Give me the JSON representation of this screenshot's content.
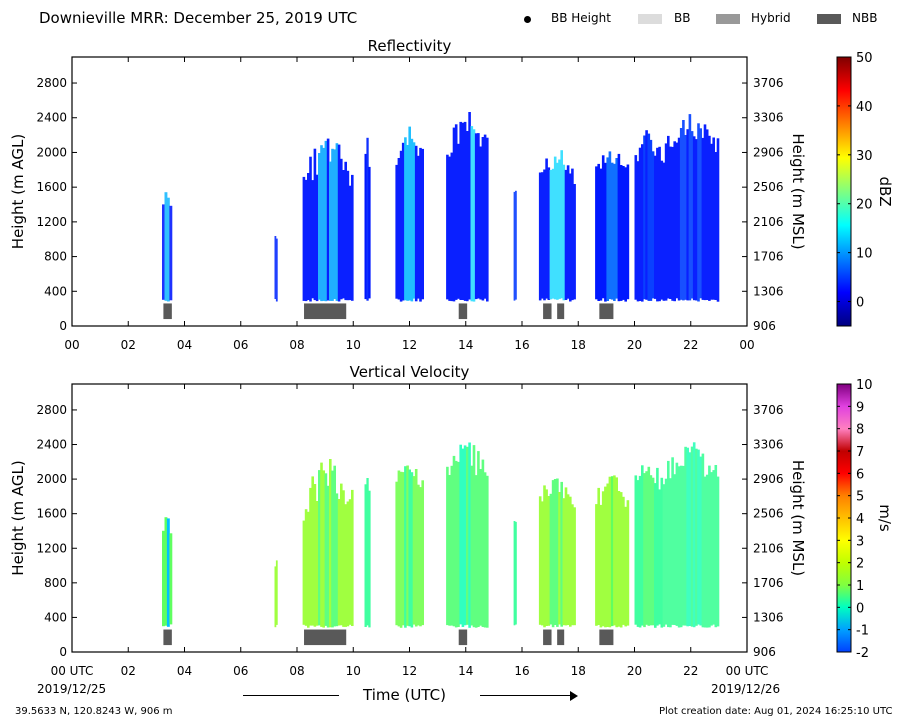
{
  "header": {
    "title": "Downieville MRR:  December 25, 2019 UTC",
    "legend": [
      {
        "label": "BB Height",
        "kind": "dot",
        "color": "#000000"
      },
      {
        "label": "BB",
        "kind": "box",
        "color": "#dcdcdc"
      },
      {
        "label": "Hybrid",
        "kind": "box",
        "color": "#999999"
      },
      {
        "label": "NBB",
        "kind": "box",
        "color": "#595959"
      }
    ]
  },
  "x_axis": {
    "label": "Time (UTC)",
    "start_label": "00 UTC",
    "end_label": "00 UTC",
    "start_date": "2019/12/25",
    "end_date": "2019/12/26"
  },
  "footer": {
    "location": "39.5633 N, 120.8243 W, 906 m",
    "creation": "Plot creation date: Aug 01, 2024 16:25:10 UTC"
  },
  "chart_data": [
    {
      "type": "heatmap",
      "title": "Reflectivity",
      "ylabel": "Height (m AGL)",
      "ylabel_right": "Height (m MSL)",
      "colorbar_label": "dBZ",
      "colorbar_ticks": [
        "50",
        "40",
        "30",
        "20",
        "10",
        "0"
      ],
      "colorbar_range": [
        -5,
        50
      ],
      "colorbar_colors": [
        "#00007f",
        "#0000ff",
        "#0080ff",
        "#00ffff",
        "#80ff80",
        "#ffff00",
        "#ff8000",
        "#ff0000",
        "#7f0000"
      ],
      "xlim": [
        0,
        24
      ],
      "ylim": [
        0,
        3100
      ],
      "xticks": [
        "00",
        "02",
        "04",
        "06",
        "08",
        "10",
        "12",
        "14",
        "16",
        "18",
        "20",
        "22",
        "00"
      ],
      "yticks": [
        "0",
        "400",
        "800",
        "1200",
        "1600",
        "2000",
        "2400",
        "2800"
      ],
      "yticks_right": [
        "906",
        "1306",
        "1706",
        "2106",
        "2506",
        "2906",
        "3306",
        "3706"
      ],
      "echo_blocks": [
        {
          "t0": 3.2,
          "t1": 3.55,
          "top": 1600,
          "top_jag": 200,
          "fill": "#1e32ff",
          "core": "#30c0ff"
        },
        {
          "t0": 7.2,
          "t1": 7.3,
          "top": 1100,
          "top_jag": 100,
          "fill": "#2040ff",
          "core": "#2040ff"
        },
        {
          "t0": 8.2,
          "t1": 10.0,
          "top": 2300,
          "top_jag": 500,
          "fill": "#0a20ff",
          "core": "#20b0ff"
        },
        {
          "t0": 10.4,
          "t1": 10.6,
          "top": 2200,
          "top_jag": 300,
          "fill": "#0018ff",
          "core": "#1030ff"
        },
        {
          "t0": 11.5,
          "t1": 12.5,
          "top": 2300,
          "top_jag": 300,
          "fill": "#0a20ff",
          "core": "#20c0ff"
        },
        {
          "t0": 13.3,
          "t1": 14.8,
          "top": 2500,
          "top_jag": 400,
          "fill": "#0a20ff",
          "core": "#40e0ff"
        },
        {
          "t0": 15.7,
          "t1": 15.8,
          "top": 1600,
          "top_jag": 100,
          "fill": "#2050ff",
          "core": "#2050ff"
        },
        {
          "t0": 16.6,
          "t1": 17.9,
          "top": 2100,
          "top_jag": 300,
          "fill": "#0a20ff",
          "core": "#40e0ff"
        },
        {
          "t0": 18.6,
          "t1": 19.8,
          "top": 2100,
          "top_jag": 300,
          "fill": "#0018ff",
          "core": "#1070ff"
        },
        {
          "t0": 20.0,
          "t1": 21.0,
          "top": 2300,
          "top_jag": 300,
          "fill": "#0a20ff",
          "core": "#0a40ff"
        },
        {
          "t0": 21.0,
          "t1": 23.0,
          "top": 2500,
          "top_jag": 400,
          "fill": "#0a20ff",
          "core": "#1850ff"
        }
      ],
      "nbb_segments": [
        [
          3.25,
          3.55
        ],
        [
          8.25,
          9.75
        ],
        [
          13.75,
          14.05
        ],
        [
          16.75,
          17.05
        ],
        [
          17.25,
          17.5
        ],
        [
          18.75,
          19.25
        ]
      ],
      "nbb_height_range": [
        80,
        260
      ]
    },
    {
      "type": "heatmap",
      "title": "Vertical Velocity",
      "ylabel": "Height (m AGL)",
      "ylabel_right": "Height (m MSL)",
      "colorbar_label": "m/s",
      "colorbar_ticks": [
        "10",
        "9",
        "8",
        "7",
        "6",
        "5",
        "4",
        "3",
        "2",
        "1",
        "0",
        "-1",
        "-2"
      ],
      "colorbar_range": [
        -2,
        10
      ],
      "colorbar_colors": [
        "#0040ff",
        "#00a0ff",
        "#00ffc0",
        "#80ff40",
        "#c0ff00",
        "#ffff00",
        "#ffc000",
        "#ff8000",
        "#ff0000",
        "#c00000",
        "#ff80c0",
        "#e040e0",
        "#800080"
      ],
      "xlim": [
        0,
        24
      ],
      "ylim": [
        0,
        3100
      ],
      "xticks": [
        "00 UTC",
        "02",
        "04",
        "06",
        "08",
        "10",
        "12",
        "14",
        "16",
        "18",
        "20",
        "22",
        "00 UTC"
      ],
      "yticks": [
        "0",
        "400",
        "800",
        "1200",
        "1600",
        "2000",
        "2400",
        "2800"
      ],
      "yticks_right": [
        "906",
        "1306",
        "1706",
        "2106",
        "2506",
        "2906",
        "3306",
        "3706"
      ],
      "echo_blocks": [
        {
          "t0": 3.2,
          "t1": 3.55,
          "top": 1600,
          "top_jag": 200,
          "fill": "#60ff60",
          "core": "#00c0ff"
        },
        {
          "t0": 7.2,
          "t1": 7.3,
          "top": 1100,
          "top_jag": 100,
          "fill": "#a0ff40",
          "core": "#a0ff40"
        },
        {
          "t0": 8.2,
          "t1": 10.0,
          "top": 2300,
          "top_jag": 500,
          "fill": "#a0ff40",
          "core": "#60ff80"
        },
        {
          "t0": 10.4,
          "t1": 10.6,
          "top": 2200,
          "top_jag": 300,
          "fill": "#40ffa0",
          "core": "#40ffa0"
        },
        {
          "t0": 11.5,
          "t1": 12.5,
          "top": 2300,
          "top_jag": 300,
          "fill": "#80ff60",
          "core": "#40ffa0"
        },
        {
          "t0": 13.3,
          "t1": 14.8,
          "top": 2500,
          "top_jag": 400,
          "fill": "#60ff80",
          "core": "#30ffc0"
        },
        {
          "t0": 15.7,
          "t1": 15.8,
          "top": 1600,
          "top_jag": 100,
          "fill": "#40ffa0",
          "core": "#40ffa0"
        },
        {
          "t0": 16.6,
          "t1": 17.9,
          "top": 2100,
          "top_jag": 300,
          "fill": "#a0ff40",
          "core": "#60ff80"
        },
        {
          "t0": 18.6,
          "t1": 19.8,
          "top": 2100,
          "top_jag": 300,
          "fill": "#a0ff40",
          "core": "#60ff60"
        },
        {
          "t0": 20.0,
          "t1": 21.0,
          "top": 2300,
          "top_jag": 300,
          "fill": "#40ffa0",
          "core": "#60ff80"
        },
        {
          "t0": 21.0,
          "t1": 23.0,
          "top": 2500,
          "top_jag": 400,
          "fill": "#50ffa0",
          "core": "#40ffc0"
        }
      ],
      "nbb_segments": [
        [
          3.25,
          3.55
        ],
        [
          8.25,
          9.75
        ],
        [
          13.75,
          14.05
        ],
        [
          16.75,
          17.05
        ],
        [
          17.25,
          17.5
        ],
        [
          18.75,
          19.25
        ]
      ],
      "nbb_height_range": [
        80,
        260
      ]
    }
  ]
}
